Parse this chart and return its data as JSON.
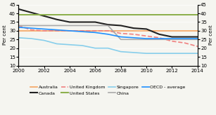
{
  "title_left": "Per cent",
  "title_right": "Per cent",
  "xlim": [
    2000,
    2014
  ],
  "ylim": [
    10,
    45
  ],
  "yticks": [
    10,
    15,
    20,
    25,
    30,
    35,
    40,
    45
  ],
  "xticks": [
    2000,
    2002,
    2004,
    2006,
    2008,
    2010,
    2012,
    2014
  ],
  "series": {
    "Australia": {
      "color": "#f4a460",
      "linewidth": 1.2,
      "linestyle": "solid",
      "x": [
        2000,
        2001,
        2002,
        2003,
        2004,
        2005,
        2006,
        2007,
        2008,
        2009,
        2010,
        2011,
        2012,
        2013,
        2014
      ],
      "y": [
        30.0,
        30.0,
        30.0,
        30.0,
        30.0,
        30.0,
        30.0,
        30.0,
        30.0,
        30.0,
        30.0,
        30.0,
        30.0,
        30.0,
        30.0
      ]
    },
    "Canada": {
      "color": "#222222",
      "linewidth": 1.5,
      "linestyle": "solid",
      "x": [
        2000,
        2001,
        2002,
        2003,
        2004,
        2005,
        2006,
        2007,
        2008,
        2009,
        2010,
        2011,
        2012,
        2013,
        2014
      ],
      "y": [
        42.5,
        40.5,
        38.5,
        36.5,
        35.0,
        35.0,
        35.0,
        33.5,
        33.0,
        31.5,
        31.0,
        28.0,
        26.5,
        26.5,
        26.5
      ]
    },
    "United Kingdom": {
      "color": "#f08080",
      "linewidth": 1.2,
      "linestyle": "dashed",
      "x": [
        2000,
        2001,
        2002,
        2003,
        2004,
        2005,
        2006,
        2007,
        2008,
        2009,
        2010,
        2011,
        2012,
        2013,
        2014
      ],
      "y": [
        33.0,
        30.5,
        30.0,
        30.0,
        30.0,
        30.0,
        30.0,
        30.0,
        28.5,
        28.0,
        27.0,
        26.0,
        24.0,
        23.0,
        21.0
      ]
    },
    "United States": {
      "color": "#8db04e",
      "linewidth": 1.5,
      "linestyle": "solid",
      "x": [
        2000,
        2001,
        2002,
        2003,
        2004,
        2005,
        2006,
        2007,
        2008,
        2009,
        2010,
        2011,
        2012,
        2013,
        2014
      ],
      "y": [
        39.3,
        39.3,
        39.3,
        39.3,
        39.3,
        39.3,
        39.3,
        39.3,
        39.3,
        39.3,
        39.3,
        39.3,
        39.3,
        39.3,
        39.3
      ]
    },
    "Singapore": {
      "color": "#87ceeb",
      "linewidth": 1.2,
      "linestyle": "solid",
      "x": [
        2000,
        2001,
        2002,
        2003,
        2004,
        2005,
        2006,
        2007,
        2008,
        2009,
        2010,
        2011,
        2012,
        2013,
        2014
      ],
      "y": [
        26.0,
        25.5,
        24.5,
        22.5,
        22.0,
        21.5,
        20.0,
        20.0,
        18.0,
        17.5,
        17.0,
        17.0,
        17.0,
        17.0,
        17.0
      ]
    },
    "China": {
      "color": "#aaaaaa",
      "linewidth": 1.2,
      "linestyle": "solid",
      "x": [
        2000,
        2001,
        2002,
        2003,
        2004,
        2005,
        2006,
        2007,
        2008,
        2009,
        2010,
        2011,
        2012,
        2013,
        2014
      ],
      "y": [
        33.0,
        33.0,
        33.0,
        33.0,
        33.0,
        33.0,
        33.0,
        33.0,
        25.0,
        25.0,
        25.0,
        25.0,
        25.0,
        25.0,
        25.0
      ]
    },
    "OECD - average": {
      "color": "#1e90ff",
      "linewidth": 1.2,
      "linestyle": "solid",
      "x": [
        2000,
        2001,
        2002,
        2003,
        2004,
        2005,
        2006,
        2007,
        2008,
        2009,
        2010,
        2011,
        2012,
        2013,
        2014
      ],
      "y": [
        32.0,
        31.5,
        31.0,
        30.5,
        30.0,
        29.5,
        29.0,
        28.0,
        26.5,
        26.0,
        25.5,
        25.5,
        25.5,
        25.5,
        25.5
      ]
    }
  },
  "legend_order": [
    "Australia",
    "Canada",
    "United Kingdom",
    "United States",
    "Singapore",
    "China",
    "OECD - average"
  ],
  "background_color": "#f5f5f0",
  "fontsize_axis": 5,
  "fontsize_legend": 4.5,
  "fontsize_title": 5
}
